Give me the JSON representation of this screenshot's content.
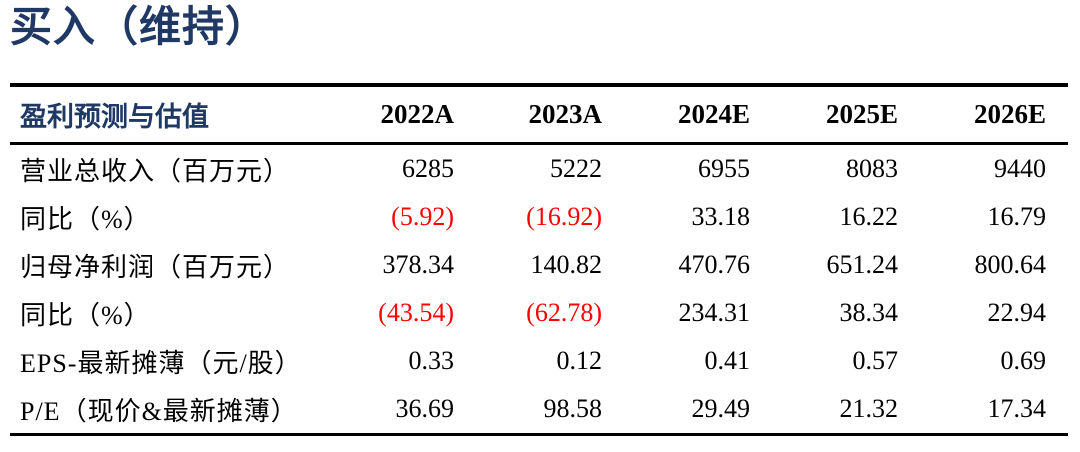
{
  "rating": {
    "title": "买入（维持）"
  },
  "table": {
    "header": {
      "label": "盈利预测与估值",
      "columns": [
        "2022A",
        "2023A",
        "2024E",
        "2025E",
        "2026E"
      ]
    },
    "rows": [
      {
        "label": "营业总收入（百万元）",
        "values": [
          "6285",
          "5222",
          "6955",
          "8083",
          "9440"
        ],
        "negative": [
          false,
          false,
          false,
          false,
          false
        ]
      },
      {
        "label": "同比（%）",
        "values": [
          "(5.92)",
          "(16.92)",
          "33.18",
          "16.22",
          "16.79"
        ],
        "negative": [
          true,
          true,
          false,
          false,
          false
        ]
      },
      {
        "label": "归母净利润（百万元）",
        "values": [
          "378.34",
          "140.82",
          "470.76",
          "651.24",
          "800.64"
        ],
        "negative": [
          false,
          false,
          false,
          false,
          false
        ]
      },
      {
        "label": "同比（%）",
        "values": [
          "(43.54)",
          "(62.78)",
          "234.31",
          "38.34",
          "22.94"
        ],
        "negative": [
          true,
          true,
          false,
          false,
          false
        ]
      },
      {
        "label": "EPS-最新摊薄（元/股）",
        "values": [
          "0.33",
          "0.12",
          "0.41",
          "0.57",
          "0.69"
        ],
        "negative": [
          false,
          false,
          false,
          false,
          false
        ]
      },
      {
        "label": "P/E（现价&最新摊薄）",
        "values": [
          "36.69",
          "98.58",
          "29.49",
          "21.32",
          "17.34"
        ],
        "negative": [
          false,
          false,
          false,
          false,
          false
        ]
      }
    ]
  },
  "colors": {
    "accent_navy": "#1F3864",
    "negative_red": "#FF0000",
    "text_black": "#000000",
    "rule_black": "#000000",
    "background": "#FFFFFF"
  }
}
